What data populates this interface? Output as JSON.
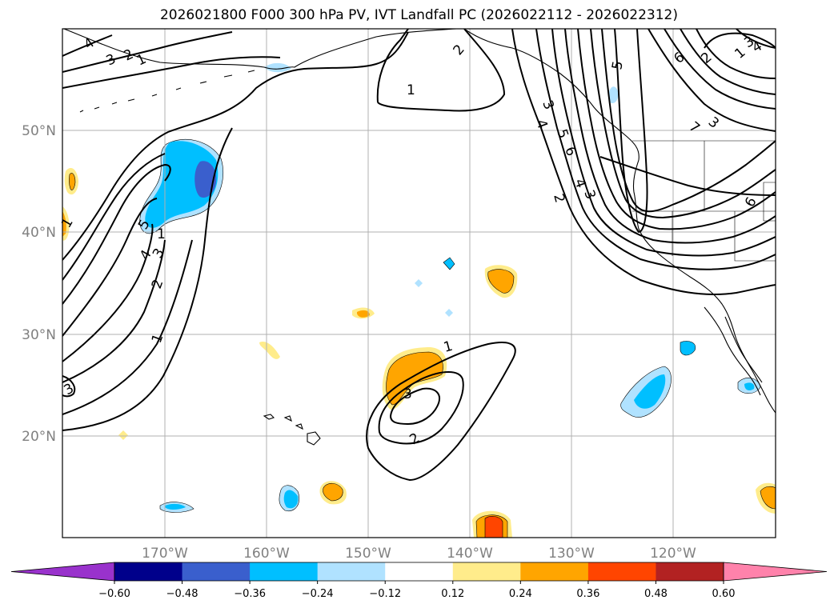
{
  "title": "2026021800 F000 300 hPa PV, IVT Landfall PC (2026022112 - 2026022312)",
  "axes": {
    "lon_labels": [
      "170°W",
      "160°W",
      "150°W",
      "140°W",
      "130°W",
      "120°W"
    ],
    "lat_labels": [
      "50°N",
      "40°N",
      "30°N",
      "20°N"
    ]
  },
  "colorbar": {
    "tick_labels": [
      "−0.60",
      "−0.48",
      "−0.36",
      "−0.24",
      "−0.12",
      "0.12",
      "0.24",
      "0.36",
      "0.48",
      "0.60"
    ],
    "colors": [
      "#9932cc",
      "#00008b",
      "#3a5fcd",
      "#00bfff",
      "#b0e2ff",
      "#ffffff",
      "#ffec8b",
      "#ffa500",
      "#ff4500",
      "#b22222",
      "#ff82ab"
    ]
  },
  "contour_labels": [
    "4",
    "3",
    "2",
    "1",
    "1",
    "1",
    "3",
    "5",
    "4",
    "3",
    "2",
    "1",
    "1",
    "3",
    "2",
    "1",
    "2",
    "3",
    "4",
    "5",
    "6",
    "4",
    "3",
    "2",
    "5",
    "6",
    "7",
    "3",
    "1",
    "2",
    "3",
    "4",
    "6"
  ],
  "colors": {
    "contour": "#000000",
    "grid": "#b0b0b0"
  }
}
